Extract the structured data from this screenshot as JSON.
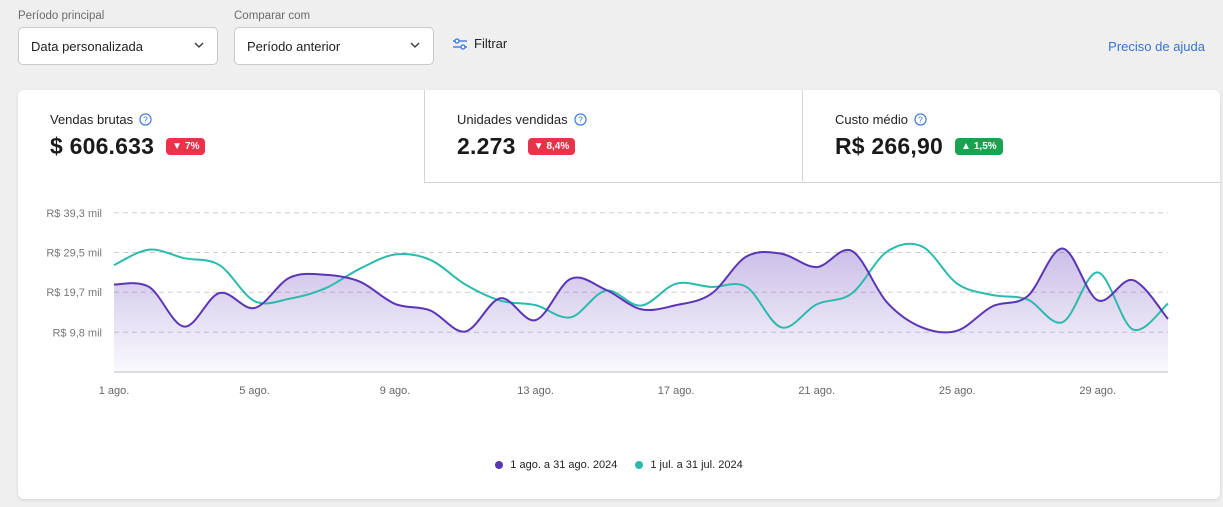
{
  "filters": {
    "main_period_label": "Período principal",
    "main_period_value": "Data personalizada",
    "compare_label": "Comparar com",
    "compare_value": "Período anterior",
    "filter_label": "Filtrar"
  },
  "help_link": "Preciso de ajuda",
  "metrics": [
    {
      "label": "Vendas brutas",
      "value": "$ 606.633",
      "change": "7%",
      "direction": "down"
    },
    {
      "label": "Unidades vendidas",
      "value": "2.273",
      "change": "8,4%",
      "direction": "down"
    },
    {
      "label": "Custo médio",
      "value": "R$ 266,90",
      "change": "1,5%",
      "direction": "up"
    }
  ],
  "colors": {
    "primary_series": "#5b35b5",
    "compare_series": "#2bbbad",
    "badge_down": "#e8334a",
    "badge_up": "#1aa251",
    "link": "#3573d9"
  },
  "chart_data": {
    "type": "line",
    "y_tick_labels": [
      "R$ 39,3 mil",
      "R$ 29,5 mil",
      "R$ 19,7 mil",
      "R$ 9,8 mil"
    ],
    "y_ticks": [
      39.3,
      29.5,
      19.7,
      9.8
    ],
    "ylim": [
      0,
      39.3
    ],
    "x": [
      1,
      2,
      3,
      4,
      5,
      6,
      7,
      8,
      9,
      10,
      11,
      12,
      13,
      14,
      15,
      16,
      17,
      18,
      19,
      20,
      21,
      22,
      23,
      24,
      25,
      26,
      27,
      28,
      29,
      30,
      31
    ],
    "x_tick_labels": [
      {
        "day": 1,
        "label": "1 ago."
      },
      {
        "day": 5,
        "label": "5 ago."
      },
      {
        "day": 9,
        "label": "9 ago."
      },
      {
        "day": 13,
        "label": "13 ago."
      },
      {
        "day": 17,
        "label": "17 ago."
      },
      {
        "day": 21,
        "label": "21 ago."
      },
      {
        "day": 25,
        "label": "25 ago."
      },
      {
        "day": 29,
        "label": "29 ago."
      }
    ],
    "grid": true,
    "legend_position": "bottom",
    "series": [
      {
        "name": "1 ago. a 31 ago. 2024",
        "values": [
          21.6,
          21.0,
          11.2,
          19.5,
          15.8,
          23.3,
          24.0,
          22.3,
          16.8,
          15.2,
          10.0,
          18.2,
          12.8,
          23.0,
          20.3,
          15.5,
          16.5,
          19.3,
          28.5,
          29.2,
          25.9,
          29.9,
          17.2,
          11.0,
          10.2,
          16.2,
          18.7,
          30.5,
          17.7,
          22.7,
          13.1
        ]
      },
      {
        "name": "1 jul. a 31 jul. 2024",
        "values": [
          26.4,
          30.2,
          28.1,
          26.4,
          17.5,
          18.1,
          20.6,
          25.5,
          29.0,
          27.7,
          21.6,
          17.6,
          16.5,
          13.5,
          20.1,
          16.4,
          21.8,
          21.0,
          21.0,
          11.0,
          16.7,
          19.4,
          29.7,
          31.0,
          21.8,
          19.0,
          17.9,
          12.3,
          24.6,
          10.5,
          16.9
        ]
      }
    ]
  }
}
